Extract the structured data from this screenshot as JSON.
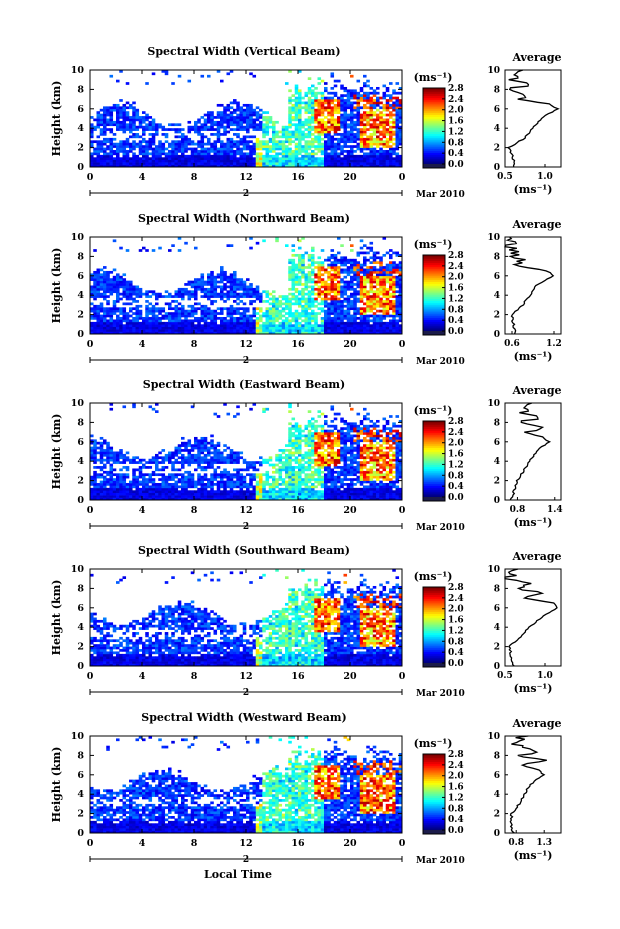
{
  "figure": {
    "xlabel": "Local Time",
    "date_label": "Mar 2010",
    "day_marker": "2",
    "average_title": "Average",
    "colorbar_unit": "(ms⁻¹)",
    "avg_xlabel": "(ms⁻¹)"
  },
  "chart_data": [
    {
      "type": "heatmap",
      "title": "Spectral Width (Vertical Beam)",
      "ylabel": "Height (km)",
      "xlim": [
        0,
        24
      ],
      "x_ticks": [
        "0",
        "4",
        "8",
        "12",
        "16",
        "20",
        "0"
      ],
      "ylim": [
        0,
        10
      ],
      "y_ticks": [
        "0",
        "2",
        "4",
        "6",
        "8",
        "10"
      ],
      "colorbar": {
        "range": [
          0.0,
          2.8
        ],
        "ticks": [
          "0.0",
          "0.4",
          "0.8",
          "1.2",
          "1.6",
          "2.0",
          "2.4",
          "2.8"
        ]
      },
      "average_profile": {
        "xlim": [
          0.5,
          1.2
        ],
        "x_ticks": [
          "0.5",
          "1.0"
        ],
        "height_km": [
          0,
          1,
          2,
          3,
          4,
          5,
          6,
          6.5,
          7,
          7.5,
          8,
          8.5,
          9,
          10
        ],
        "width": [
          0.62,
          0.6,
          0.55,
          0.75,
          0.85,
          0.95,
          1.15,
          1.05,
          0.65,
          0.8,
          0.55,
          0.85,
          0.6,
          0.7
        ]
      }
    },
    {
      "type": "heatmap",
      "title": "Spectral Width (Northward Beam)",
      "ylabel": "Height (km)",
      "xlim": [
        0,
        24
      ],
      "x_ticks": [
        "0",
        "4",
        "8",
        "12",
        "16",
        "20",
        "0"
      ],
      "ylim": [
        0,
        10
      ],
      "y_ticks": [
        "0",
        "2",
        "4",
        "6",
        "8",
        "10"
      ],
      "colorbar": {
        "range": [
          0.0,
          2.8
        ],
        "ticks": [
          "0.0",
          "0.4",
          "0.8",
          "1.2",
          "1.6",
          "2.0",
          "2.4",
          "2.8"
        ]
      },
      "average_profile": {
        "xlim": [
          0.5,
          1.3
        ],
        "x_ticks": [
          "0.6",
          "1.2"
        ],
        "height_km": [
          0,
          1,
          2,
          3,
          4,
          5,
          6,
          6.5,
          7,
          7.5,
          8,
          8.5,
          9,
          10
        ],
        "width": [
          0.65,
          0.62,
          0.6,
          0.75,
          0.85,
          0.95,
          1.2,
          1.1,
          0.7,
          0.75,
          0.6,
          0.7,
          0.55,
          0.6
        ]
      }
    },
    {
      "type": "heatmap",
      "title": "Spectral Width (Eastward Beam)",
      "ylabel": "Height (km)",
      "xlim": [
        0,
        24
      ],
      "x_ticks": [
        "0",
        "4",
        "8",
        "12",
        "16",
        "20",
        "0"
      ],
      "ylim": [
        0,
        10
      ],
      "y_ticks": [
        "0",
        "2",
        "4",
        "6",
        "8",
        "10"
      ],
      "colorbar": {
        "range": [
          0.0,
          2.8
        ],
        "ticks": [
          "0.0",
          "0.4",
          "0.8",
          "1.2",
          "1.6",
          "2.0",
          "2.4",
          "2.8"
        ]
      },
      "average_profile": {
        "xlim": [
          0.6,
          1.5
        ],
        "x_ticks": [
          "0.8",
          "1.4"
        ],
        "height_km": [
          0,
          1,
          2,
          3,
          4,
          5,
          6,
          6.5,
          7,
          7.5,
          8,
          8.5,
          9,
          10
        ],
        "width": [
          0.7,
          0.75,
          0.8,
          0.9,
          1.0,
          1.1,
          1.3,
          1.2,
          0.9,
          1.3,
          0.85,
          1.2,
          0.9,
          1.0
        ]
      }
    },
    {
      "type": "heatmap",
      "title": "Spectral Width (Southward Beam)",
      "ylabel": "Height (km)",
      "xlim": [
        0,
        24
      ],
      "x_ticks": [
        "0",
        "4",
        "8",
        "12",
        "16",
        "20",
        "0"
      ],
      "ylim": [
        0,
        10
      ],
      "y_ticks": [
        "0",
        "2",
        "4",
        "6",
        "8",
        "10"
      ],
      "colorbar": {
        "range": [
          0.0,
          2.8
        ],
        "ticks": [
          "0.0",
          "0.4",
          "0.8",
          "1.2",
          "1.6",
          "2.0",
          "2.4",
          "2.8"
        ]
      },
      "average_profile": {
        "xlim": [
          0.5,
          1.2
        ],
        "x_ticks": [
          "0.5",
          "1.0"
        ],
        "height_km": [
          0,
          1,
          2,
          3,
          4,
          5,
          6,
          6.5,
          7,
          7.5,
          8,
          8.5,
          9,
          10
        ],
        "width": [
          0.6,
          0.58,
          0.55,
          0.7,
          0.8,
          0.95,
          1.15,
          1.1,
          0.75,
          0.95,
          0.6,
          0.9,
          0.55,
          0.6
        ]
      }
    },
    {
      "type": "heatmap",
      "title": "Spectral Width (Westward Beam)",
      "ylabel": "Height (km)",
      "xlim": [
        0,
        24
      ],
      "x_ticks": [
        "0",
        "4",
        "8",
        "12",
        "16",
        "20",
        "0"
      ],
      "ylim": [
        0,
        10
      ],
      "y_ticks": [
        "0",
        "2",
        "4",
        "6",
        "8",
        "10"
      ],
      "colorbar": {
        "range": [
          0.0,
          2.8
        ],
        "ticks": [
          "0.0",
          "0.4",
          "0.8",
          "1.2",
          "1.6",
          "2.0",
          "2.4",
          "2.8"
        ]
      },
      "average_profile": {
        "xlim": [
          0.6,
          1.6
        ],
        "x_ticks": [
          "0.8",
          "1.3"
        ],
        "height_km": [
          0,
          1,
          2,
          3,
          4,
          5,
          6,
          6.5,
          7,
          7.5,
          8,
          8.5,
          9,
          10
        ],
        "width": [
          0.75,
          0.7,
          0.72,
          0.85,
          0.95,
          1.05,
          1.3,
          1.2,
          0.9,
          1.25,
          0.85,
          1.2,
          0.8,
          0.9
        ]
      }
    }
  ]
}
